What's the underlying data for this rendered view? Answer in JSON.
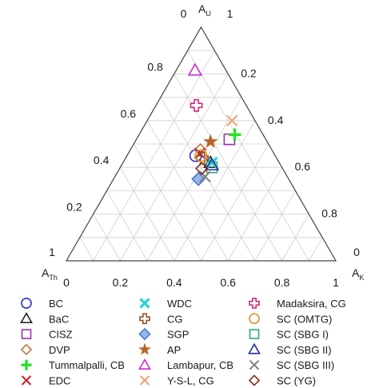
{
  "chart_data": {
    "type": "scatter",
    "subtype": "ternary",
    "axes": {
      "top": {
        "main": "A",
        "sub": "U"
      },
      "right": {
        "main": "A",
        "sub": "K"
      },
      "left": {
        "main": "A",
        "sub": "Th"
      }
    },
    "grid": true,
    "grid_step": 0.1,
    "corner_labels": {
      "top": "1",
      "top_side": "0",
      "right": "1",
      "right_side": "0",
      "left": "1"
    },
    "tick_labels": {
      "bottom": [
        "0",
        "0.2",
        "0.4",
        "0.6",
        "0.8",
        "1"
      ],
      "left_side": [
        "0.2",
        "0.4",
        "0.6",
        "0.8"
      ],
      "right_side": [
        "0.8",
        "0.6",
        "0.4",
        "0.2"
      ]
    },
    "series": [
      {
        "name": "BC",
        "color": "#2b2bd6",
        "marker": "circle",
        "points": [
          {
            "u": 0.45,
            "k": 0.255
          }
        ]
      },
      {
        "name": "BaC",
        "color": "#222222",
        "marker": "triangle",
        "points": [
          {
            "u": 0.42,
            "k": 0.325
          }
        ]
      },
      {
        "name": "CISZ",
        "color": "#a030b0",
        "marker": "square",
        "points": [
          {
            "u": 0.52,
            "k": 0.345
          }
        ]
      },
      {
        "name": "DVP",
        "color": "#c07840",
        "marker": "diamond",
        "points": [
          {
            "u": 0.475,
            "k": 0.26
          }
        ]
      },
      {
        "name": "Tummalpalli, CB",
        "color": "#28e028",
        "marker": "plus-bold",
        "points": [
          {
            "u": 0.54,
            "k": 0.355
          }
        ]
      },
      {
        "name": "EDC",
        "color": "#cc1f2a",
        "marker": "x",
        "points": [
          {
            "u": 0.46,
            "k": 0.265
          }
        ]
      },
      {
        "name": "WDC",
        "color": "#26d6d6",
        "marker": "x-bold",
        "points": [
          {
            "u": 0.42,
            "k": 0.33
          }
        ]
      },
      {
        "name": "CG",
        "color": "#8b4a1a",
        "marker": "plus-outline",
        "points": [
          {
            "u": 0.44,
            "k": 0.285
          }
        ]
      },
      {
        "name": "SGP",
        "color": "#4a7ad8",
        "marker": "diamond-filled",
        "points": [
          {
            "u": 0.35,
            "k": 0.315
          }
        ]
      },
      {
        "name": "AP",
        "color": "#b86428",
        "marker": "star",
        "points": [
          {
            "u": 0.51,
            "k": 0.28
          }
        ]
      },
      {
        "name": "Lambapur, CB",
        "color": "#cc2ad6",
        "marker": "triangle",
        "points": [
          {
            "u": 0.815,
            "k": 0.07
          }
        ]
      },
      {
        "name": "Y-S-L, CG",
        "color": "#f2a070",
        "marker": "x",
        "points": [
          {
            "u": 0.6,
            "k": 0.315
          }
        ]
      },
      {
        "name": "Madaksira, CG",
        "color": "#d01e72",
        "marker": "plus-outline",
        "points": [
          {
            "u": 0.665,
            "k": 0.15
          }
        ]
      },
      {
        "name": "SC (OMTG)",
        "color": "#e09028",
        "marker": "circle",
        "points": [
          {
            "u": 0.45,
            "k": 0.275
          }
        ]
      },
      {
        "name": "SC (SBG I)",
        "color": "#2ea88a",
        "marker": "square",
        "points": [
          {
            "u": 0.4,
            "k": 0.34
          }
        ]
      },
      {
        "name": "SC (SBG II)",
        "color": "#2030a0",
        "marker": "triangle",
        "points": [
          {
            "u": 0.41,
            "k": 0.335
          }
        ]
      },
      {
        "name": "SC (SBG III)",
        "color": "#808080",
        "marker": "x",
        "points": [
          {
            "u": 0.36,
            "k": 0.335
          }
        ]
      },
      {
        "name": "SC (YG)",
        "color": "#8b2a1a",
        "marker": "diamond",
        "points": [
          {
            "u": 0.395,
            "k": 0.305
          }
        ]
      }
    ]
  }
}
